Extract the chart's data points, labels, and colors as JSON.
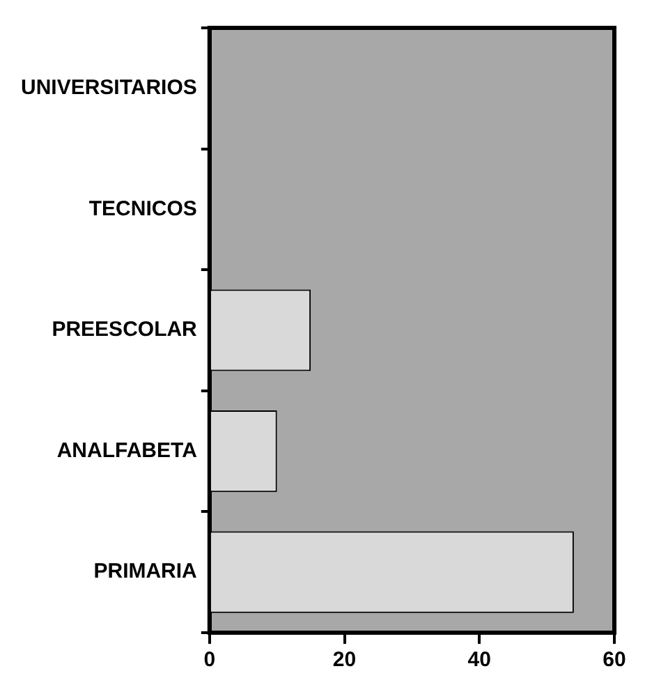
{
  "chart_data": {
    "type": "bar",
    "orientation": "horizontal",
    "categories": [
      "UNIVERSITARIOS",
      "TECNICOS",
      "PREESCOLAR",
      "ANALFABETA",
      "PRIMARIA"
    ],
    "values": [
      0,
      0,
      15,
      10,
      54
    ],
    "color": "#d9d9d9",
    "xlim": [
      0,
      60
    ],
    "xticks": [
      0,
      20,
      40,
      60
    ],
    "grid": false,
    "legend": false
  }
}
